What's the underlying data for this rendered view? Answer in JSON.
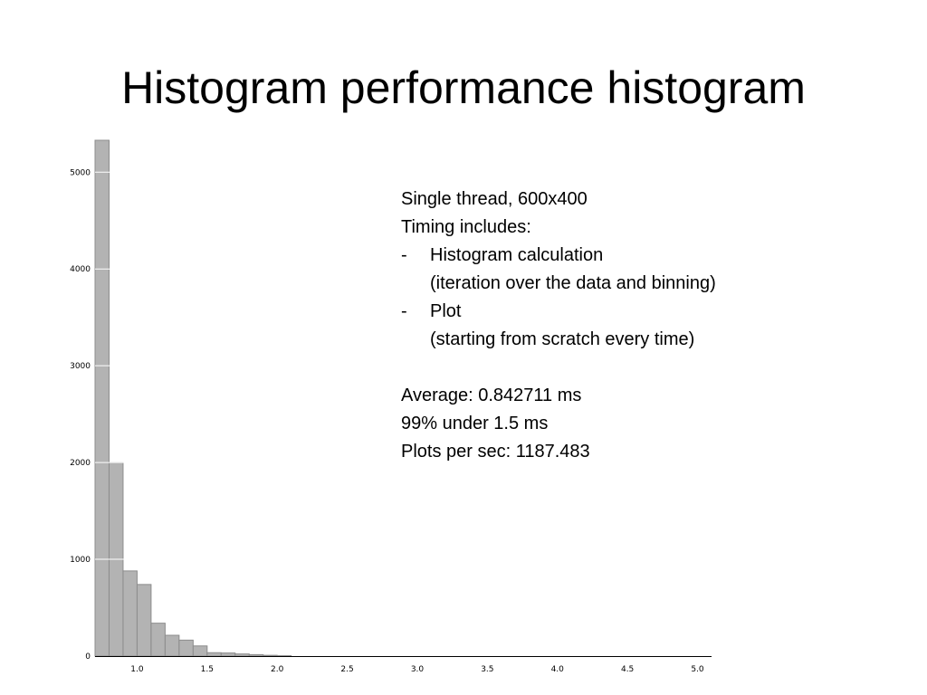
{
  "slide": {
    "title": "Histogram performance histogram"
  },
  "notes": {
    "line1": "Single thread, 600x400",
    "line2": "Timing includes:",
    "bullets": [
      {
        "dash": "-",
        "text": "Histogram calculation",
        "sub": "(iteration over the data and binning)"
      },
      {
        "dash": "-",
        "text": "Plot",
        "sub": "(starting from scratch every time)"
      }
    ],
    "stats": [
      "Average: 0.842711 ms",
      "99% under 1.5 ms",
      "Plots per sec: 1187.483"
    ]
  },
  "chart_data": {
    "type": "bar",
    "bin_width": 0.1,
    "bin_starts": [
      0.7,
      0.8,
      0.9,
      1.0,
      1.1,
      1.2,
      1.3,
      1.4,
      1.5,
      1.6,
      1.7,
      1.8,
      1.9,
      2.0
    ],
    "values": [
      5330,
      2000,
      880,
      740,
      340,
      215,
      165,
      105,
      35,
      32,
      22,
      15,
      8,
      4
    ],
    "xlim": [
      0.7,
      5.1
    ],
    "ylim": [
      0,
      5330
    ],
    "xticks": [
      "1.0",
      "1.5",
      "2.0",
      "2.5",
      "3.0",
      "3.5",
      "4.0",
      "4.5",
      "5.0"
    ],
    "yticks": [
      "0",
      "1000",
      "2000",
      "3000",
      "4000",
      "5000"
    ],
    "grid": "horizontal",
    "bar_color": "#b3b3b3",
    "title": "",
    "xlabel": "",
    "ylabel": ""
  }
}
